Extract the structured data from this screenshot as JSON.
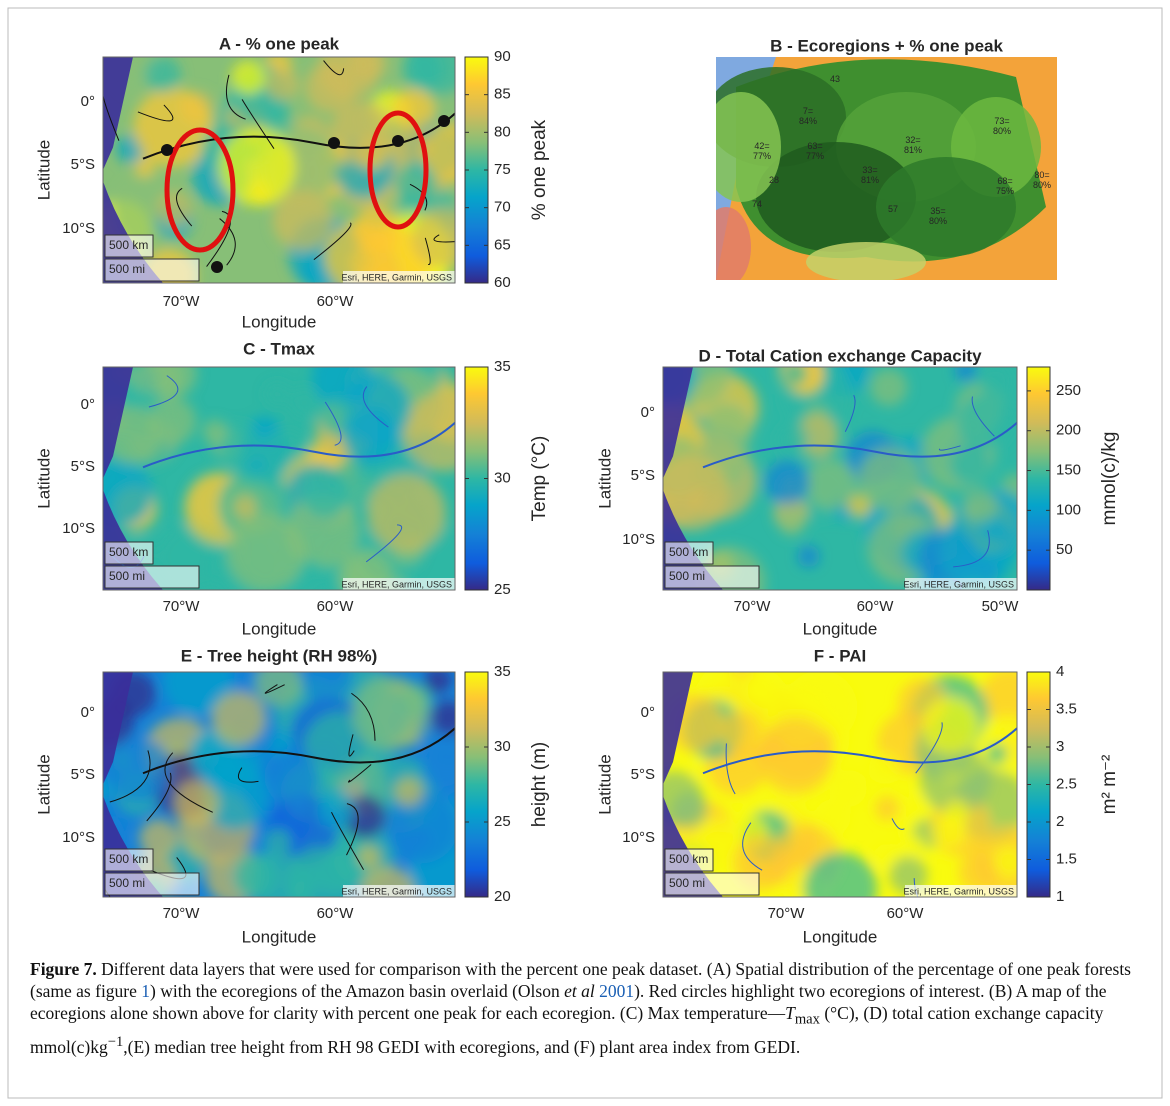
{
  "figure": {
    "panels": [
      {
        "title": "A - % one peak",
        "ylabel": "Latitude",
        "xlabel": "Longitude",
        "yticks": [
          "0°",
          "5°S",
          "10°S"
        ],
        "xticks": [
          "70°W",
          "60°W"
        ],
        "attribution": "Esri, HERE, Garmin, USGS",
        "scale_km": "500 km",
        "scale_mi": "500 mi",
        "colorbar": {
          "label": "% one peak",
          "lim": [
            60,
            90
          ],
          "ticks": [
            60,
            65,
            70,
            75,
            80,
            85,
            90
          ]
        }
      },
      {
        "title": "B - Ecoregions + % one peak",
        "labels": [
          [
            "43"
          ],
          [
            "7=",
            "84%"
          ],
          [
            "42=",
            "77%"
          ],
          [
            "63=",
            "77%"
          ],
          [
            "32=",
            "81%"
          ],
          [
            "73=",
            "80%"
          ],
          [
            "33=",
            "81%"
          ],
          [
            "28"
          ],
          [
            "74"
          ],
          [
            "57"
          ],
          [
            "35=",
            "80%"
          ],
          [
            "68=",
            "75%"
          ],
          [
            "80=",
            "80%"
          ]
        ]
      },
      {
        "title": "C - Tmax",
        "ylabel": "Latitude",
        "xlabel": "Longitude",
        "yticks": [
          "0°",
          "5°S",
          "10°S"
        ],
        "xticks": [
          "70°W",
          "60°W"
        ],
        "attribution": "Esri, HERE, Garmin, USGS",
        "scale_km": "500 km",
        "scale_mi": "500 mi",
        "colorbar": {
          "label": "Temp (°C)",
          "lim": [
            25,
            35
          ],
          "ticks": [
            25,
            30,
            35
          ]
        }
      },
      {
        "title": "D - Total Cation exchange Capacity",
        "ylabel": "Latitude",
        "xlabel": "Longitude",
        "yticks": [
          "0°",
          "5°S",
          "10°S"
        ],
        "xticks": [
          "70°W",
          "60°W",
          "50°W"
        ],
        "attribution": "Esri, HERE, Garmin, USGS",
        "scale_km": "500 km",
        "scale_mi": "500 mi",
        "colorbar": {
          "label": "mmol(c)/kg",
          "lim": [
            0,
            280
          ],
          "ticks": [
            50,
            100,
            150,
            200,
            250
          ]
        }
      },
      {
        "title": "E - Tree height (RH 98%)",
        "ylabel": "Latitude",
        "xlabel": "Longitude",
        "yticks": [
          "0°",
          "5°S",
          "10°S"
        ],
        "xticks": [
          "70°W",
          "60°W"
        ],
        "attribution": "Esri, HERE, Garmin, USGS",
        "scale_km": "500 km",
        "scale_mi": "500 mi",
        "colorbar": {
          "label": "height (m)",
          "lim": [
            20,
            35
          ],
          "ticks": [
            20,
            25,
            30,
            35
          ]
        }
      },
      {
        "title": "F - PAI",
        "ylabel": "Latitude",
        "xlabel": "Longitude",
        "yticks": [
          "0°",
          "5°S",
          "10°S"
        ],
        "xticks": [
          "70°W",
          "60°W"
        ],
        "attribution": "Esri, HERE, Garmin, USGS",
        "scale_km": "500 km",
        "scale_mi": "500 mi",
        "colorbar": {
          "label": "m² m⁻²",
          "lim": [
            1,
            4
          ],
          "ticks": [
            1,
            1.5,
            2,
            2.5,
            3,
            3.5,
            4
          ]
        }
      }
    ],
    "caption": {
      "label": "Figure 7.",
      "text_1": " Different data layers that were used for comparison with the percent one peak dataset. (A) Spatial distribution of the percentage of one peak forests (same as figure ",
      "ref": "1",
      "text_2": ") with the ecoregions of the Amazon basin overlaid (Olson ",
      "italic": "et al",
      "cite": "2001",
      "text_3": "). Red circles highlight two ecoregions of interest. (B) A map of the ecoregions alone shown above for clarity with percent one peak for each ecoregion. (C) Max temperature—",
      "tmax": "T",
      "tmax_sub": "max",
      "text_4": " (°C), (D) total cation exchange capacity mmol(c)kg",
      "sup": "−1",
      "text_5": ",(E) median tree height from RH 98 GEDI with ecoregions, and (F) plant area index from GEDI."
    }
  }
}
